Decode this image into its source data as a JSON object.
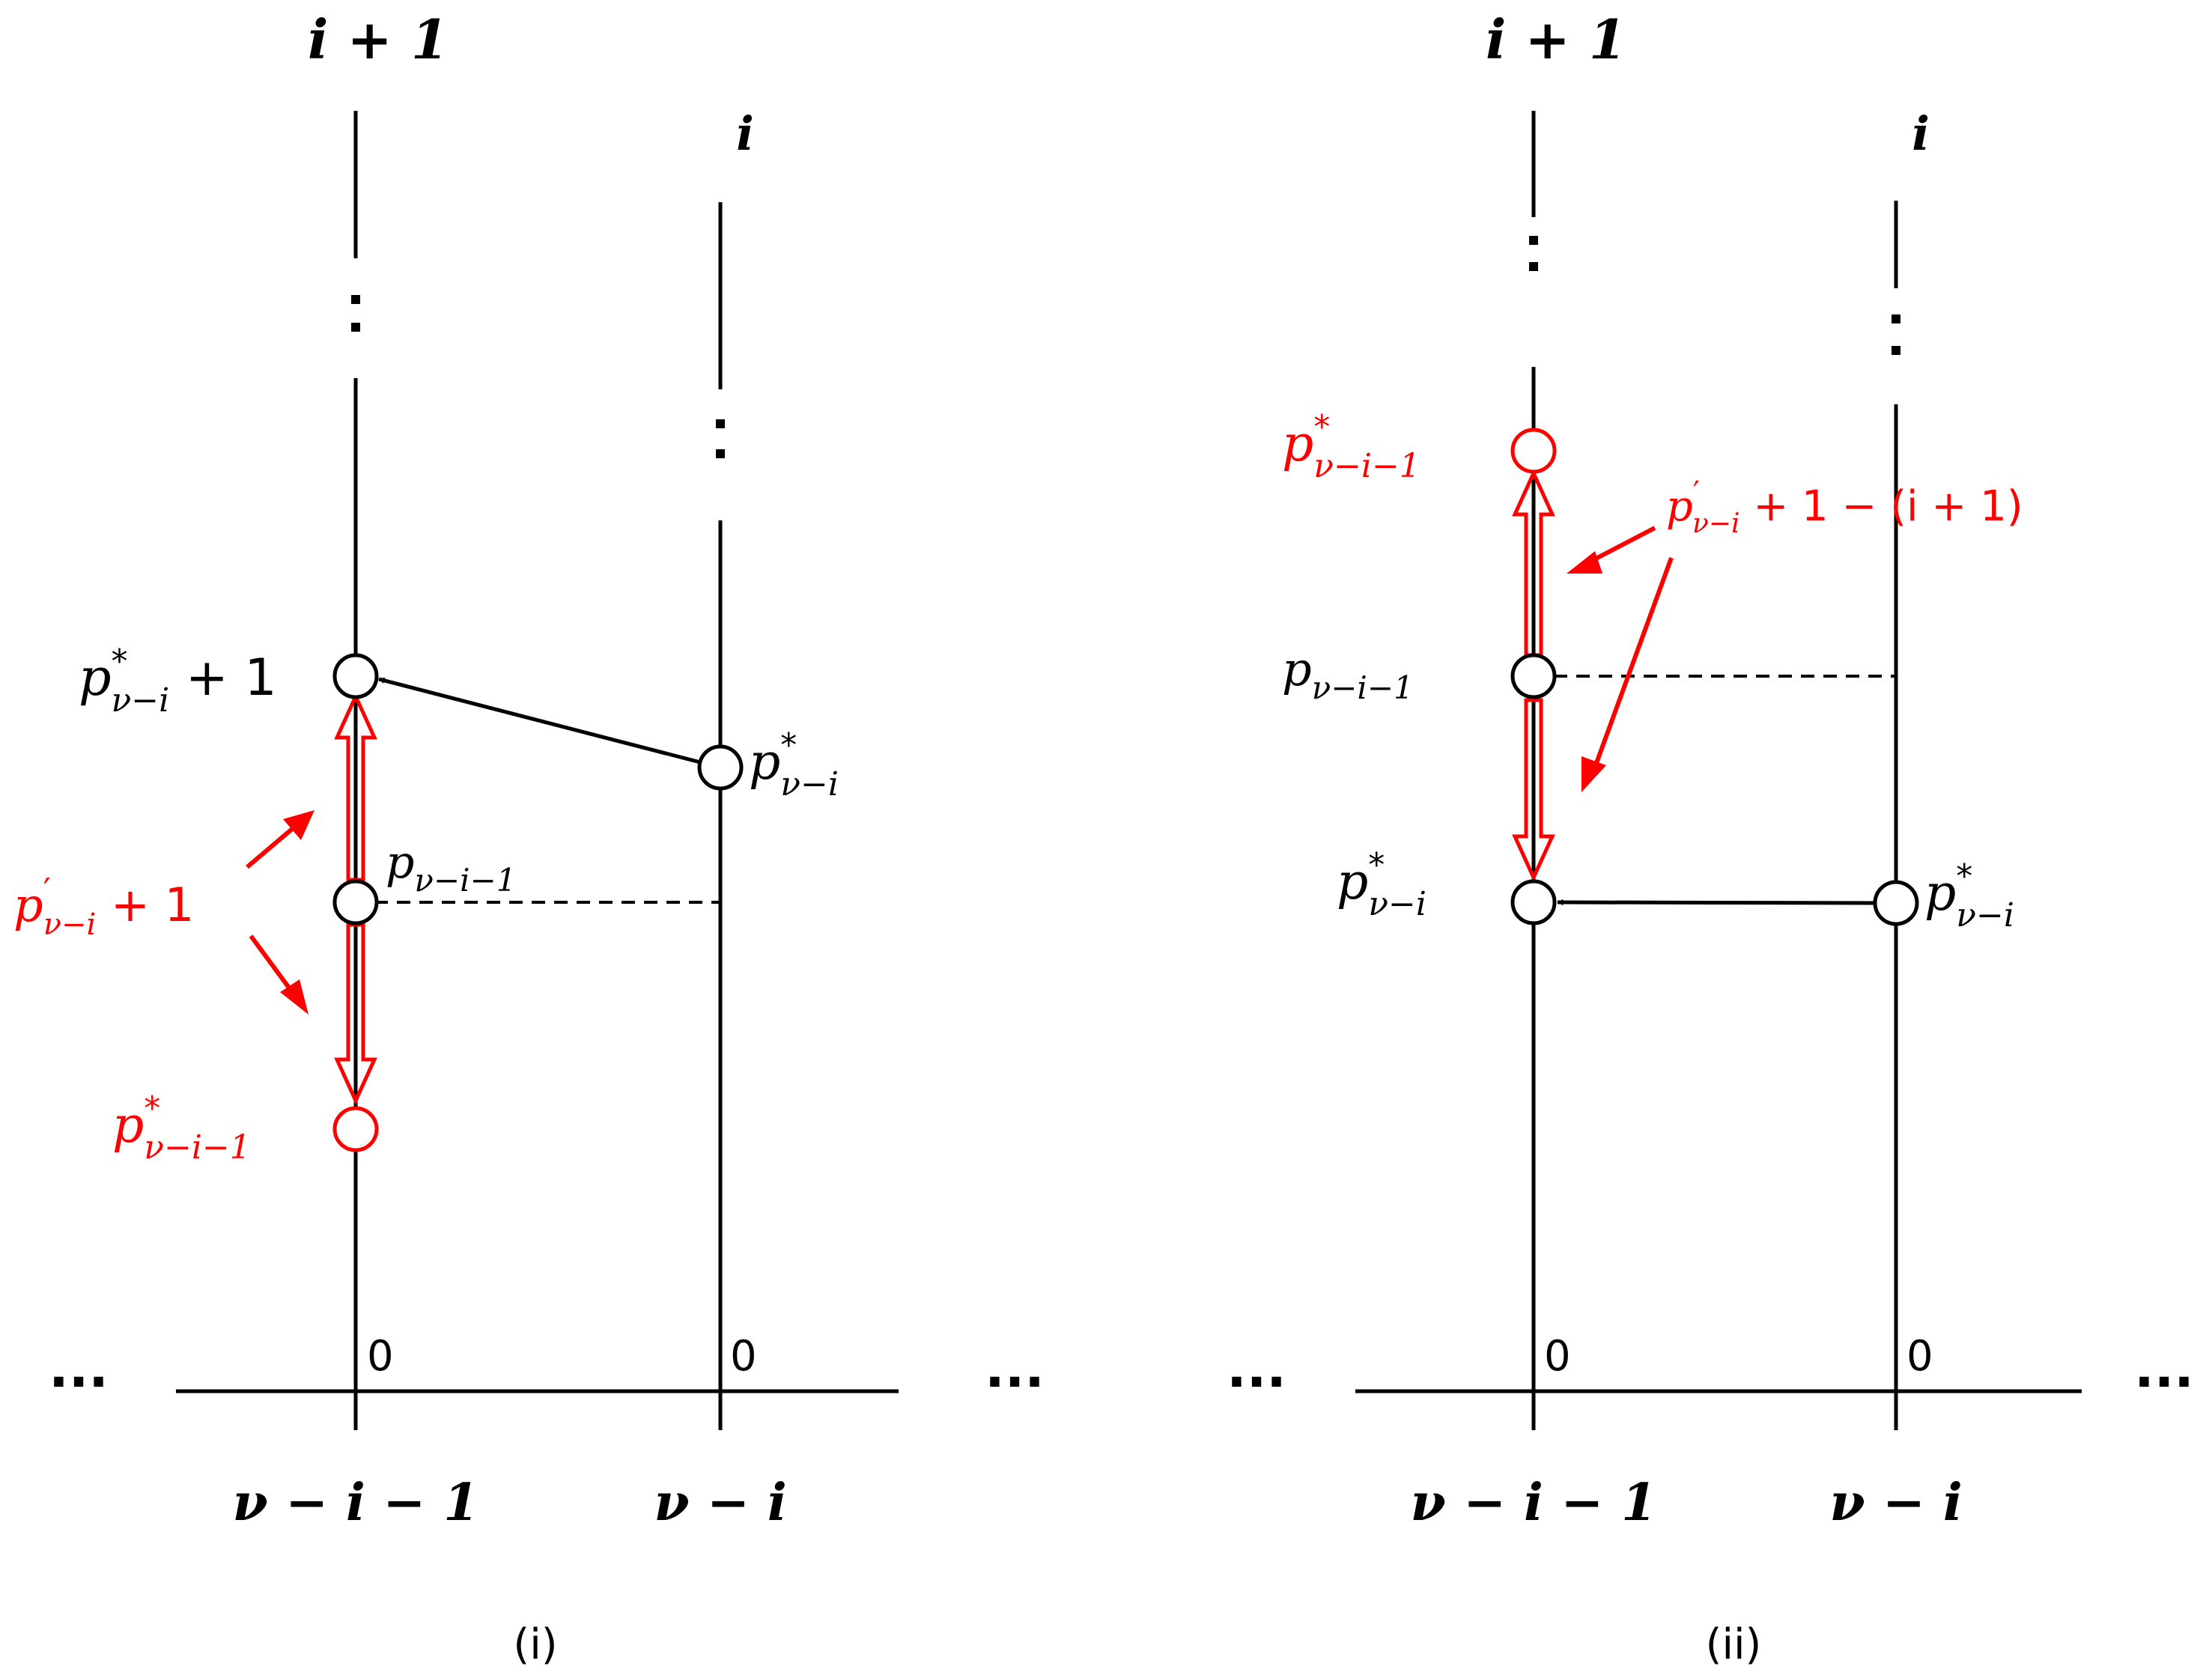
{
  "colors": {
    "ink": "#000000",
    "accent": "#ff0000"
  },
  "panel_i": {
    "caption": "(i)",
    "col_top_left": "i + 1",
    "col_top_right": "i",
    "axis_left": "ν − i − 1",
    "axis_right": "ν − i",
    "zero_left": "0",
    "zero_right": "0",
    "ellipsis": "···",
    "node_top": {
      "base": "p",
      "sup": "*",
      "sub": "ν−i",
      "tail": " + 1"
    },
    "node_right": {
      "base": "p",
      "sup": "*",
      "sub": "ν−i"
    },
    "node_mid": {
      "base": "p",
      "sub": "ν−i−1"
    },
    "node_red": {
      "base": "p",
      "sup": "*",
      "sub": "ν−i−1"
    },
    "red_label": {
      "base": "p",
      "sup": "′",
      "sub": "ν−i",
      "tail": " + 1"
    }
  },
  "panel_ii": {
    "caption": "(ii)",
    "col_top_left": "i + 1",
    "col_top_right": "i",
    "axis_left": "ν − i − 1",
    "axis_right": "ν − i",
    "zero_left": "0",
    "zero_right": "0",
    "ellipsis": "···",
    "node_red": {
      "base": "p",
      "sup": "*",
      "sub": "ν−i−1"
    },
    "node_mid": {
      "base": "p",
      "sub": "ν−i−1"
    },
    "node_low_left": {
      "base": "p",
      "sup": "*",
      "sub": "ν−i"
    },
    "node_low_right": {
      "base": "p",
      "sup": "*",
      "sub": "ν−i"
    },
    "red_label": {
      "base": "p",
      "sup": "′",
      "sub": "ν−i",
      "tail": " + 1 − (i + 1)"
    }
  }
}
